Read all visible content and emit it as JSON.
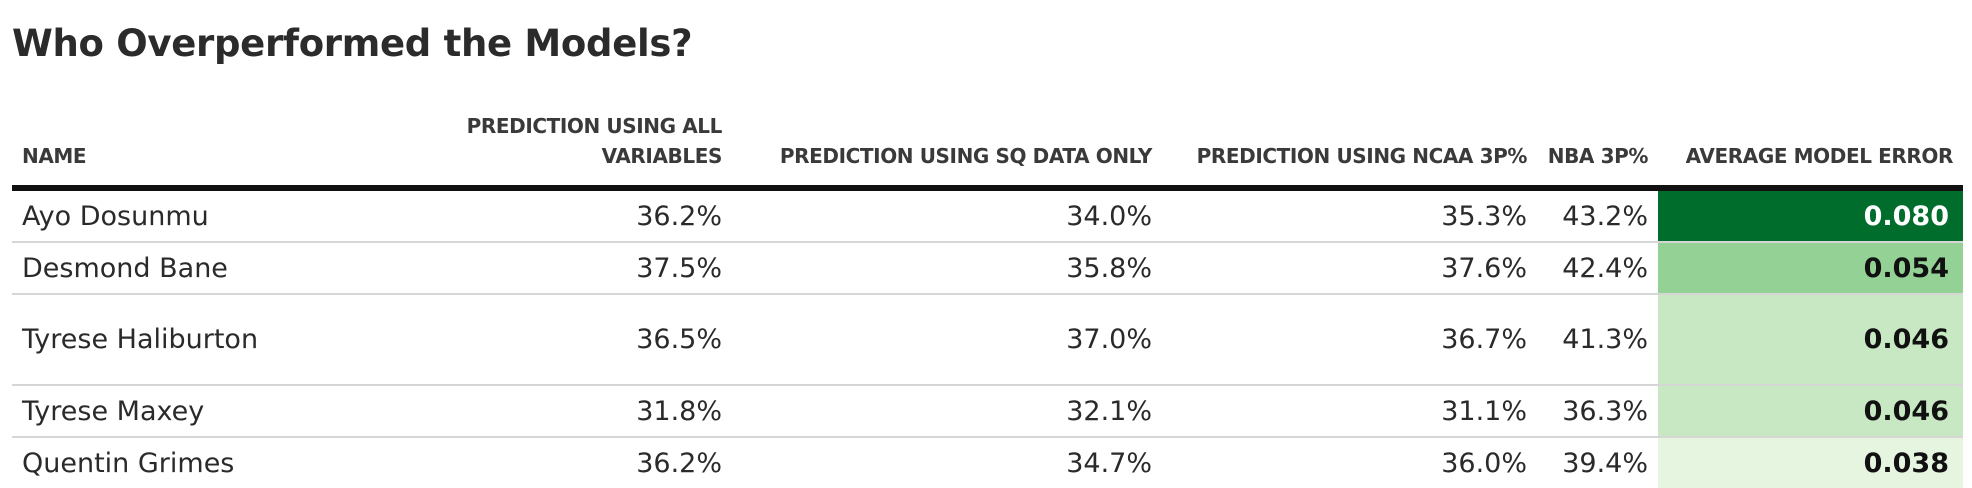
{
  "title": "Who Overperformed the Models?",
  "columns": [
    "NAME",
    "PREDICTION USING ALL VARIABLES",
    "PREDICTION USING SQ DATA ONLY",
    "PREDICTION USING NCAA 3P%",
    "NBA 3P%",
    "AVERAGE MODEL ERROR"
  ],
  "colors": {
    "header_rule": "#111111",
    "row_divider": "#d6d6d6",
    "scale_dark": "#006d2c",
    "scale_medium": "#93d195",
    "scale_light": "#c7e8c2",
    "scale_lightest": "#e5f5e0"
  },
  "chart_data": {
    "type": "table",
    "title": "Who Overperformed the Models?",
    "columns": [
      "NAME",
      "PREDICTION USING ALL VARIABLES",
      "PREDICTION USING SQ DATA ONLY",
      "PREDICTION USING NCAA 3P%",
      "NBA 3P%",
      "AVERAGE MODEL ERROR"
    ],
    "rows": [
      {
        "name": "Ayo Dosunmu",
        "pred_all": "36.2%",
        "pred_sq": "34.0%",
        "pred_ncaa": "35.3%",
        "nba_3p": "43.2%",
        "avg_error": "0.080",
        "error_value": 0.08,
        "error_bg": "#006d2c",
        "error_fg": "#ffffff"
      },
      {
        "name": "Desmond Bane",
        "pred_all": "37.5%",
        "pred_sq": "35.8%",
        "pred_ncaa": "37.6%",
        "nba_3p": "42.4%",
        "avg_error": "0.054",
        "error_value": 0.054,
        "error_bg": "#93d195",
        "error_fg": "#111111"
      },
      {
        "name": "Tyrese Haliburton",
        "pred_all": "36.5%",
        "pred_sq": "37.0%",
        "pred_ncaa": "36.7%",
        "nba_3p": "41.3%",
        "avg_error": "0.046",
        "error_value": 0.046,
        "error_bg": "#c7e8c2",
        "error_fg": "#111111"
      },
      {
        "name": "Tyrese Maxey",
        "pred_all": "31.8%",
        "pred_sq": "32.1%",
        "pred_ncaa": "31.1%",
        "nba_3p": "36.3%",
        "avg_error": "0.046",
        "error_value": 0.046,
        "error_bg": "#c7e8c2",
        "error_fg": "#111111"
      },
      {
        "name": "Quentin Grimes",
        "pred_all": "36.2%",
        "pred_sq": "34.7%",
        "pred_ncaa": "36.0%",
        "nba_3p": "39.4%",
        "avg_error": "0.038",
        "error_value": 0.038,
        "error_bg": "#e5f5e0",
        "error_fg": "#111111"
      }
    ]
  }
}
